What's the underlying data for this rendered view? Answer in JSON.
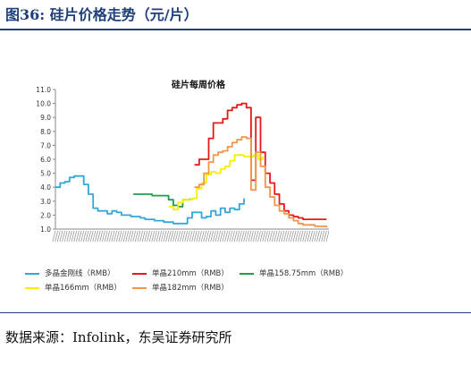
{
  "figure_title": "图36:  硅片价格走势（元/片）",
  "source": "数据来源：Infolink，东吴证券研究所",
  "colors": {
    "multi": "#33a7d8",
    "mono210": "#e41a1c",
    "mono158": "#1f9e4b",
    "mono166": "#f4f000",
    "mono182": "#f0954e"
  },
  "chart_data": {
    "type": "line",
    "title": "硅片每周价格",
    "xlabel": "",
    "ylabel": "",
    "ylim": [
      1.0,
      11.0
    ],
    "yticks": [
      "1.0",
      "2.0",
      "3.0",
      "4.0",
      "5.0",
      "6.0",
      "7.0",
      "8.0",
      "9.0",
      "10.0",
      "11.0"
    ],
    "x_count": 117,
    "grid": false,
    "legend_position": "bottom",
    "series": [
      {
        "key": "multi",
        "name": "多晶金刚线（RMB）",
        "x": [
          0,
          2,
          4,
          6,
          8,
          10,
          12,
          14,
          16,
          18,
          20,
          22,
          24,
          26,
          28,
          30,
          32,
          34,
          36,
          38,
          40,
          42,
          44,
          46,
          48,
          50,
          52,
          54,
          56,
          58,
          60,
          62,
          64,
          66,
          68,
          70,
          72,
          74,
          76,
          78,
          80
        ],
        "values": [
          4.0,
          4.3,
          4.4,
          4.7,
          4.8,
          4.8,
          4.2,
          3.5,
          2.5,
          2.3,
          2.3,
          2.1,
          2.3,
          2.2,
          2.0,
          2.0,
          1.9,
          1.9,
          1.8,
          1.7,
          1.7,
          1.6,
          1.6,
          1.5,
          1.5,
          1.4,
          1.4,
          1.4,
          1.8,
          2.2,
          2.2,
          1.8,
          1.9,
          2.3,
          2.0,
          2.5,
          2.2,
          2.5,
          2.4,
          2.8,
          3.2
        ]
      },
      {
        "key": "mono210",
        "name": "单晶210mm（RMB）",
        "x": [
          59,
          61,
          63,
          65,
          67,
          69,
          71,
          73,
          75,
          77,
          79,
          81,
          83,
          85,
          87,
          89,
          91,
          93,
          95,
          97,
          99,
          101,
          103,
          105,
          110,
          115
        ],
        "values": [
          5.6,
          6.0,
          6.0,
          7.5,
          8.6,
          8.6,
          8.9,
          9.5,
          9.7,
          9.9,
          10.0,
          9.7,
          4.5,
          9.0,
          6.5,
          5.0,
          4.3,
          3.5,
          2.8,
          2.3,
          2.0,
          1.9,
          1.8,
          1.7,
          1.7,
          1.7
        ]
      },
      {
        "key": "mono158",
        "name": "单晶158.75mm（RMB）",
        "x": [
          33,
          37,
          41,
          45,
          48,
          50,
          52,
          54,
          57
        ],
        "values": [
          3.5,
          3.5,
          3.4,
          3.4,
          3.1,
          2.7,
          2.6,
          3.1,
          3.2
        ]
      },
      {
        "key": "mono166",
        "name": "单晶166mm（RMB）",
        "x": [
          48,
          50,
          52,
          54,
          56,
          58,
          60,
          62,
          64,
          66,
          68,
          70,
          72,
          74,
          76,
          78,
          80,
          82,
          84,
          86,
          88
        ],
        "values": [
          2.6,
          2.4,
          2.9,
          3.1,
          3.1,
          3.2,
          3.9,
          4.3,
          4.9,
          5.1,
          5.0,
          5.3,
          5.5,
          5.9,
          6.3,
          6.3,
          6.2,
          6.2,
          6.3,
          6.0,
          6.2
        ]
      },
      {
        "key": "mono182",
        "name": "单晶182mm（RMB）",
        "x": [
          59,
          61,
          63,
          65,
          67,
          69,
          71,
          73,
          75,
          77,
          79,
          81,
          83,
          85,
          87,
          89,
          91,
          93,
          95,
          97,
          99,
          101,
          103,
          105,
          110,
          115
        ],
        "values": [
          4.0,
          4.2,
          5.0,
          5.8,
          6.3,
          6.5,
          6.6,
          6.9,
          7.2,
          7.4,
          7.6,
          7.5,
          3.8,
          6.5,
          5.5,
          4.0,
          3.3,
          2.7,
          2.3,
          2.1,
          1.8,
          1.6,
          1.4,
          1.3,
          1.2,
          1.1
        ]
      }
    ]
  }
}
